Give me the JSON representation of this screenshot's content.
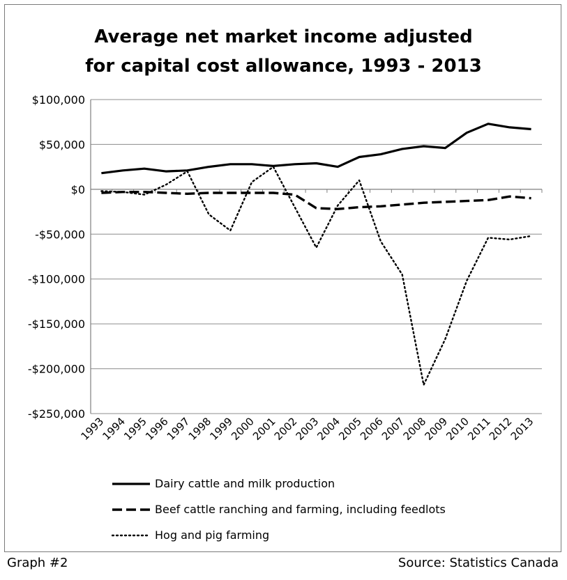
{
  "chart_data": {
    "type": "line",
    "title": "Average net market income adjusted\nfor capital cost allowance, 1993 - 2013",
    "xlabel": "",
    "ylabel": "",
    "x": [
      "1993",
      "1994",
      "1995",
      "1996",
      "1997",
      "1998",
      "1999",
      "2000",
      "2001",
      "2002",
      "2003",
      "2004",
      "2005",
      "2006",
      "2007",
      "2008",
      "2009",
      "2010",
      "2011",
      "2012",
      "2013"
    ],
    "ylim": [
      -250000,
      100000
    ],
    "yticks": [
      100000,
      50000,
      0,
      -50000,
      -100000,
      -150000,
      -200000,
      -250000
    ],
    "ytick_labels": [
      "$100,000",
      "$50,000",
      "$0",
      "-$50,000",
      "-$100,000",
      "-$150,000",
      "-$200,000",
      "-$250,000"
    ],
    "grid": true,
    "legend_position": "bottom",
    "series": [
      {
        "name": "Dairy cattle and milk production",
        "style": "solid",
        "color": "#000000",
        "values": [
          18000,
          21000,
          23000,
          20000,
          21000,
          25000,
          28000,
          28000,
          26000,
          28000,
          29000,
          25000,
          36000,
          39000,
          45000,
          48000,
          46000,
          63000,
          73000,
          69000,
          67000
        ]
      },
      {
        "name": "Beef cattle ranching and farming, including feedlots",
        "style": "dashed",
        "color": "#000000",
        "values": [
          -4000,
          -3000,
          -3000,
          -4000,
          -5000,
          -4000,
          -4000,
          -4000,
          -4000,
          -6000,
          -21000,
          -22000,
          -20000,
          -19000,
          -17000,
          -15000,
          -14000,
          -13000,
          -12000,
          -8000,
          -10000
        ]
      },
      {
        "name": "Hog and pig farming",
        "style": "dotted",
        "color": "#000000",
        "values": [
          -2000,
          -3000,
          -6000,
          5000,
          20000,
          -28000,
          -46000,
          8000,
          25000,
          -20000,
          -65000,
          -18000,
          10000,
          -58000,
          -95000,
          -218000,
          -167000,
          -102000,
          -54000,
          -56000,
          -52000
        ]
      }
    ]
  },
  "footer": {
    "left": "Graph #2",
    "right": "Source: Statistics Canada"
  }
}
